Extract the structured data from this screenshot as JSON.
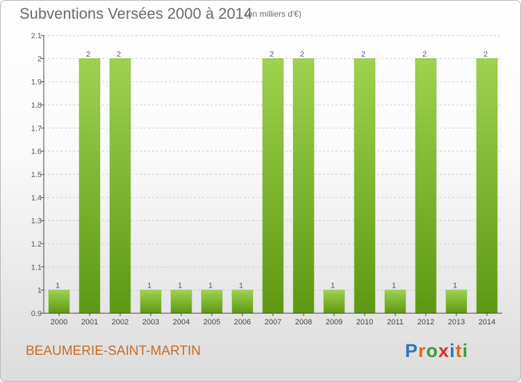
{
  "chart_title": "Subventions Versées 2000 à 2014",
  "chart_subtitle": "(en milliers d'€)",
  "place_name": "BEAUMERIE-SAINT-MARTIN",
  "logo": {
    "text": "Proxiti",
    "letter_colors": [
      "#2f74c0",
      "#e06a1a",
      "#3a9a3a",
      "#d3332a",
      "#2f74c0",
      "#e06a1a",
      "#3a9a3a"
    ]
  },
  "colors": {
    "bar_light": "#9ed24f",
    "bar_dark": "#5e9812",
    "axis": "#444444",
    "grid": "#cccccc"
  },
  "chart_data": {
    "type": "bar",
    "title": "Subventions Versées 2000 à 2014",
    "subtitle": "(en milliers d'€)",
    "categories": [
      "2000",
      "2001",
      "2002",
      "2003",
      "2004",
      "2005",
      "2006",
      "2007",
      "2008",
      "2009",
      "2010",
      "2011",
      "2012",
      "2013",
      "2014"
    ],
    "values": [
      1,
      2,
      2,
      1,
      1,
      1,
      1,
      2,
      2,
      1,
      2,
      1,
      2,
      1,
      2
    ],
    "data_labels": [
      "1",
      "2",
      "2",
      "1",
      "1",
      "1",
      "1",
      "2",
      "2",
      "1",
      "2",
      "1",
      "2",
      "1",
      "2"
    ],
    "yticks": [
      "0.9",
      "1",
      "1.1",
      "1.2",
      "1.3",
      "1.4",
      "1.5",
      "1.6",
      "1.7",
      "1.8",
      "1.9",
      "2",
      "2.1"
    ],
    "ylim": [
      0.9,
      2.1
    ],
    "grid": true,
    "legend": "none"
  }
}
